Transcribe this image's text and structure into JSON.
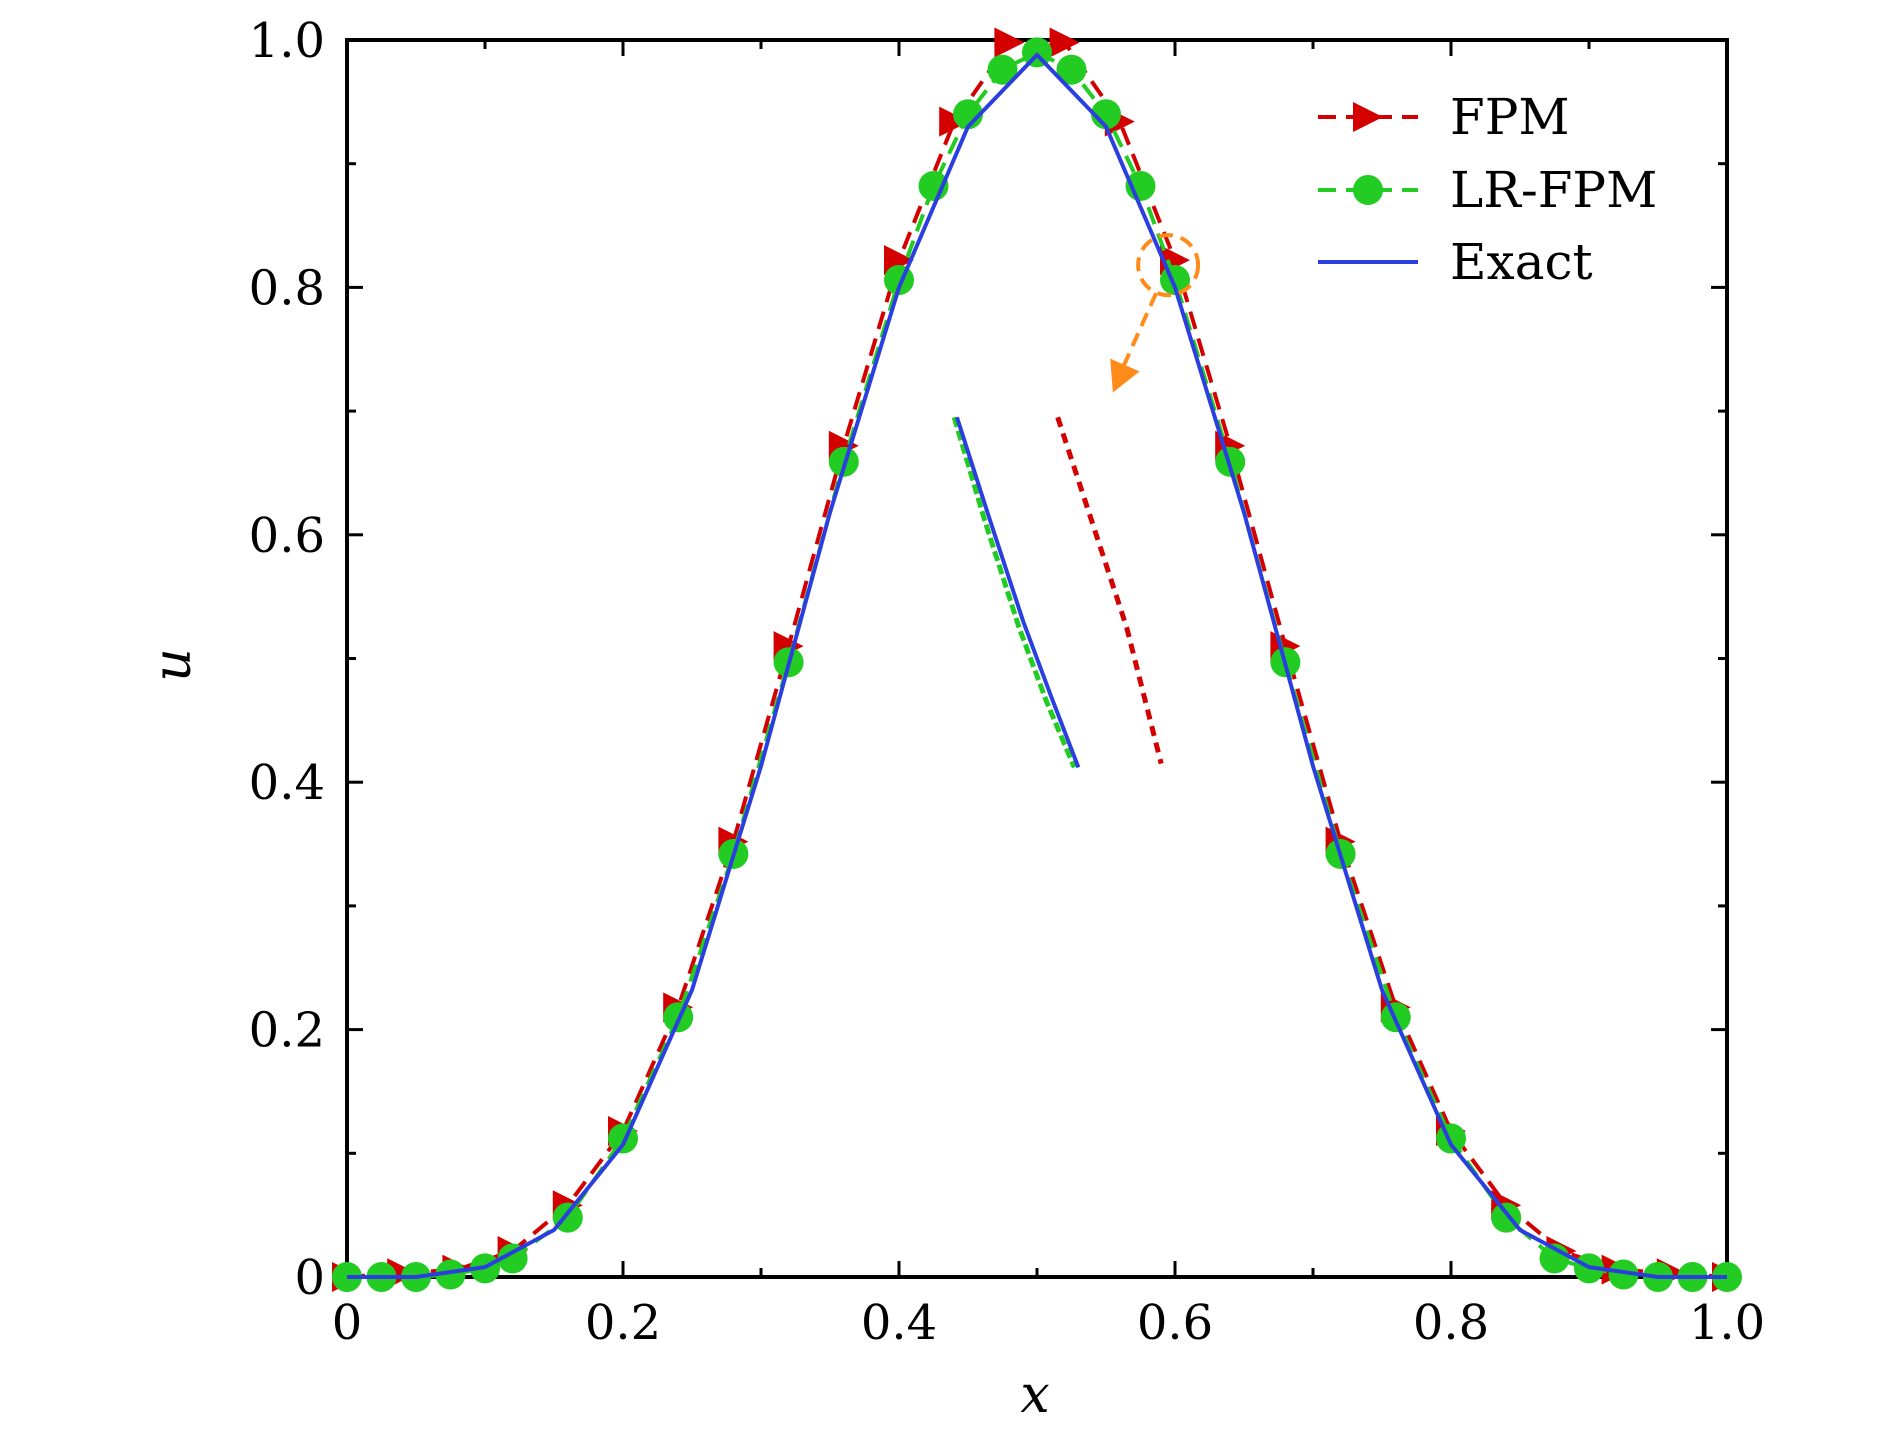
{
  "chart_data": {
    "type": "line",
    "xlabel": "x",
    "ylabel": "u",
    "xlim": [
      0,
      1.0
    ],
    "ylim": [
      0,
      1.0
    ],
    "x_ticks": [
      "0",
      "0.2",
      "0.4",
      "0.6",
      "0.8",
      "1.0"
    ],
    "y_ticks": [
      "0",
      "0.2",
      "0.4",
      "0.6",
      "0.8",
      "1.0"
    ],
    "legend_position": "top-right",
    "series": [
      {
        "name": "FPM",
        "style": "dashed-triangle",
        "color": "#d40000",
        "x": [
          0,
          0.04,
          0.08,
          0.12,
          0.16,
          0.2,
          0.24,
          0.28,
          0.32,
          0.36,
          0.4,
          0.44,
          0.48,
          0.52,
          0.56,
          0.6,
          0.64,
          0.68,
          0.72,
          0.76,
          0.8,
          0.84,
          0.88,
          0.92,
          0.96,
          1.0
        ],
        "y": [
          0.0,
          0.003,
          0.006,
          0.021,
          0.058,
          0.118,
          0.218,
          0.352,
          0.51,
          0.672,
          0.822,
          0.934,
          0.998,
          0.998,
          0.934,
          0.822,
          0.672,
          0.51,
          0.352,
          0.218,
          0.118,
          0.058,
          0.021,
          0.006,
          0.003,
          0.0
        ]
      },
      {
        "name": "LR-FPM",
        "style": "dashed-circle",
        "color": "#22cc22",
        "x": [
          0,
          0.025,
          0.05,
          0.075,
          0.1,
          0.12,
          0.16,
          0.2,
          0.24,
          0.28,
          0.32,
          0.36,
          0.4,
          0.425,
          0.45,
          0.475,
          0.5,
          0.525,
          0.55,
          0.575,
          0.6,
          0.64,
          0.68,
          0.72,
          0.76,
          0.8,
          0.84,
          0.875,
          0.9,
          0.925,
          0.95,
          0.975,
          1.0
        ],
        "y": [
          0.0,
          0.0,
          0.0,
          0.002,
          0.007,
          0.015,
          0.048,
          0.112,
          0.21,
          0.342,
          0.497,
          0.659,
          0.806,
          0.882,
          0.94,
          0.976,
          0.99,
          0.976,
          0.94,
          0.882,
          0.806,
          0.659,
          0.497,
          0.342,
          0.21,
          0.112,
          0.048,
          0.015,
          0.007,
          0.002,
          0.0,
          0.0,
          0.0
        ]
      },
      {
        "name": "Exact",
        "style": "solid",
        "color": "#2b3fe0",
        "x": [
          0,
          0.05,
          0.1,
          0.15,
          0.2,
          0.25,
          0.3,
          0.35,
          0.4,
          0.45,
          0.5,
          0.55,
          0.6,
          0.65,
          0.7,
          0.75,
          0.8,
          0.85,
          0.9,
          0.95,
          1.0
        ],
        "y": [
          0.0,
          0.0,
          0.008,
          0.038,
          0.107,
          0.232,
          0.413,
          0.618,
          0.8,
          0.93,
          0.988,
          0.93,
          0.8,
          0.618,
          0.413,
          0.232,
          0.107,
          0.038,
          0.008,
          0.0,
          0.0
        ]
      }
    ],
    "annotation": {
      "circle_at": [
        0.595,
        0.818
      ],
      "arrow_to": [
        0.555,
        0.715
      ],
      "color": "#ff8c1a"
    },
    "inset": {
      "exact": [
        [
          0.442,
          0.695
        ],
        [
          0.465,
          0.615
        ],
        [
          0.49,
          0.53
        ],
        [
          0.51,
          0.47
        ],
        [
          0.53,
          0.412
        ]
      ],
      "lr_fpm": [
        [
          0.44,
          0.695
        ],
        [
          0.462,
          0.612
        ],
        [
          0.487,
          0.525
        ],
        [
          0.507,
          0.465
        ],
        [
          0.527,
          0.412
        ]
      ],
      "fpm": [
        [
          0.515,
          0.695
        ],
        [
          0.54,
          0.61
        ],
        [
          0.565,
          0.525
        ],
        [
          0.59,
          0.415
        ]
      ]
    }
  }
}
